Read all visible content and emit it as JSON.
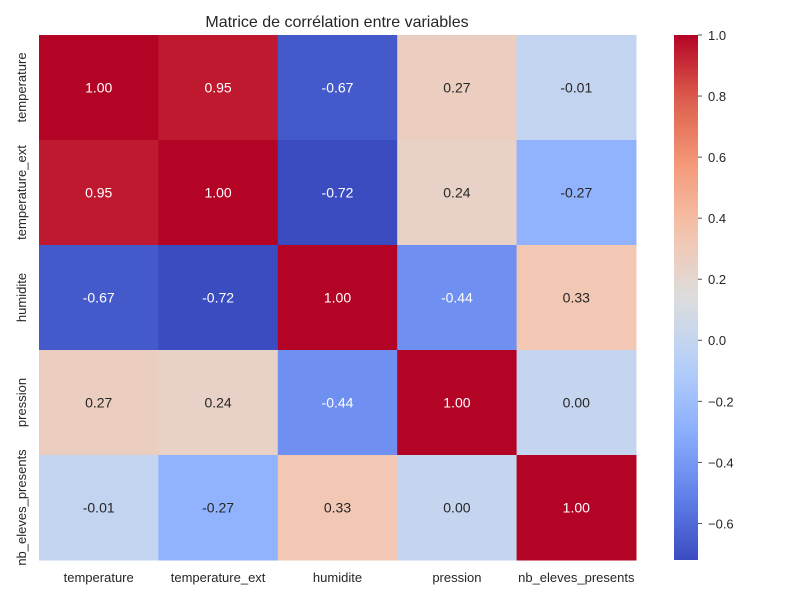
{
  "chart_data": {
    "type": "heatmap",
    "title": "Matrice de corrélation entre variables",
    "xlabel": "",
    "ylabel": "",
    "x_labels": [
      "temperature",
      "temperature_ext",
      "humidite",
      "pression",
      "nb_eleves_presents"
    ],
    "y_labels": [
      "temperature",
      "temperature_ext",
      "humidite",
      "pression",
      "nb_eleves_presents"
    ],
    "values": [
      [
        1.0,
        0.95,
        -0.67,
        0.27,
        -0.01
      ],
      [
        0.95,
        1.0,
        -0.72,
        0.24,
        -0.27
      ],
      [
        -0.67,
        -0.72,
        1.0,
        -0.44,
        0.33
      ],
      [
        0.27,
        0.24,
        -0.44,
        1.0,
        0.0
      ],
      [
        -0.01,
        -0.27,
        0.33,
        0.0,
        1.0
      ]
    ],
    "annotations": [
      [
        "1.00",
        "0.95",
        "-0.67",
        "0.27",
        "-0.01"
      ],
      [
        "0.95",
        "1.00",
        "-0.72",
        "0.24",
        "-0.27"
      ],
      [
        "-0.67",
        "-0.72",
        "1.00",
        "-0.44",
        "0.33"
      ],
      [
        "0.27",
        "0.24",
        "-0.44",
        "1.00",
        "0.00"
      ],
      [
        "-0.01",
        "-0.27",
        "0.33",
        "0.00",
        "1.00"
      ]
    ],
    "colormap": "coolwarm",
    "colorbar": {
      "range": [
        -0.72,
        1.0
      ],
      "ticks": [
        1.0,
        0.8,
        0.6,
        0.4,
        0.2,
        0.0,
        -0.2,
        -0.4,
        -0.6
      ],
      "tick_labels": [
        "1.0",
        "0.8",
        "0.6",
        "0.4",
        "0.2",
        "0.0",
        "−0.2",
        "−0.4",
        "−0.6"
      ]
    },
    "grid": false,
    "legend": "colorbar-right"
  }
}
